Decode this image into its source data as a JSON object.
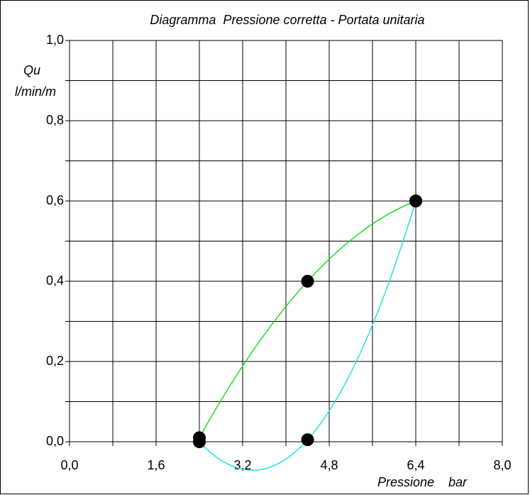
{
  "chart_data": {
    "type": "line",
    "title": "Diagramma  Pressione corretta - Portata unitaria",
    "ylabel": [
      "Qu",
      "l/min/m"
    ],
    "xlabel": "Pressione    bar",
    "xlim": [
      0,
      8
    ],
    "ylim": [
      0,
      1
    ],
    "xticks": [
      {
        "value": 0,
        "label": "0,0"
      },
      {
        "value": 0.8,
        "label": ""
      },
      {
        "value": 1.6,
        "label": "1,6"
      },
      {
        "value": 2.4,
        "label": ""
      },
      {
        "value": 3.2,
        "label": "3,2"
      },
      {
        "value": 4,
        "label": ""
      },
      {
        "value": 4.8,
        "label": "4,8"
      },
      {
        "value": 5.6,
        "label": ""
      },
      {
        "value": 6.4,
        "label": "6,4"
      },
      {
        "value": 7.2,
        "label": ""
      },
      {
        "value": 8,
        "label": "8,0"
      }
    ],
    "yticks": [
      {
        "value": 0,
        "label": "0,0"
      },
      {
        "value": 0.1,
        "label": ""
      },
      {
        "value": 0.2,
        "label": "0,2"
      },
      {
        "value": 0.3,
        "label": ""
      },
      {
        "value": 0.4,
        "label": "0,4"
      },
      {
        "value": 0.5,
        "label": ""
      },
      {
        "value": 0.6,
        "label": "0,6"
      },
      {
        "value": 0.7,
        "label": ""
      },
      {
        "value": 0.8,
        "label": "0,8"
      },
      {
        "value": 0.9,
        "label": ""
      },
      {
        "value": 1,
        "label": "1,0"
      }
    ],
    "grid": true,
    "smooth": "quadratic",
    "marker_color": "#000000",
    "series": [
      {
        "color": "#22dd22",
        "x": [
          2.4,
          4.4,
          6.4
        ],
        "values": [
          0.01,
          0.4,
          0.6
        ]
      },
      {
        "color": "#22e0e8",
        "x": [
          2.4,
          4.4,
          6.4
        ],
        "values": [
          0,
          0.005,
          0.6
        ]
      }
    ]
  }
}
